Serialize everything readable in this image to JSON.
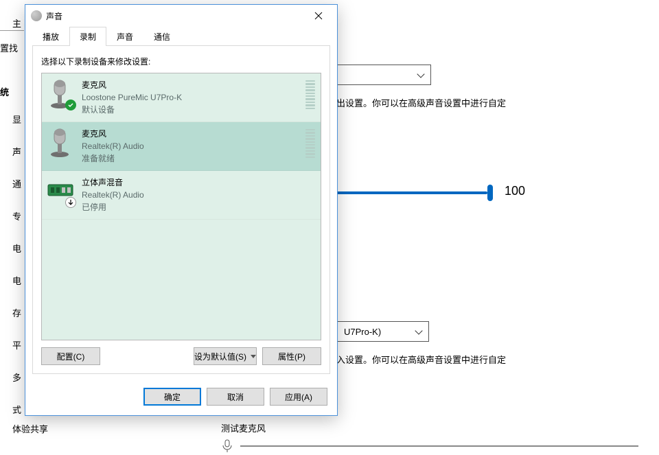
{
  "bg": {
    "topbar_home": "主",
    "search_frag": "置找",
    "system_header": "统",
    "sidebar": [
      "显",
      "声",
      "通",
      "专",
      "电",
      "电",
      "存",
      "平",
      "多",
      "式"
    ],
    "feedback": "体验共享",
    "output_hint": "出设置。你可以在高级声音设置中进行自定",
    "slider_value": "100",
    "input_dropdown_text": "U7Pro-K)",
    "input_hint": "入设置。你可以在高级声音设置中进行自定",
    "test_mic": "测试麦克风"
  },
  "dialog": {
    "title": "声音",
    "tabs": [
      "播放",
      "录制",
      "声音",
      "通信"
    ],
    "active_tab_index": 1,
    "panel_hint": "选择以下录制设备来修改设置:",
    "devices": [
      {
        "name": "麦克风",
        "sub": "Loostone PureMic U7Pro-K",
        "status": "默认设备",
        "badge": "check",
        "icon": "mic",
        "selected": false,
        "level": true
      },
      {
        "name": "麦克风",
        "sub": "Realtek(R) Audio",
        "status": "准备就绪",
        "badge": "",
        "icon": "mic",
        "selected": true,
        "level": true
      },
      {
        "name": "立体声混音",
        "sub": "Realtek(R) Audio",
        "status": "已停用",
        "badge": "down",
        "icon": "board",
        "selected": false,
        "level": false
      }
    ],
    "buttons": {
      "configure": "配置(C)",
      "set_default": "设为默认值(S)",
      "properties": "属性(P)"
    },
    "footer": {
      "ok": "确定",
      "cancel": "取消",
      "apply": "应用(A)"
    }
  },
  "colors": {
    "dialog_border": "#4a90d9",
    "list_bg": "#dff0e8",
    "list_selected": "#b7dcd2",
    "accent": "#0078d7",
    "slider": "#0067c0"
  }
}
